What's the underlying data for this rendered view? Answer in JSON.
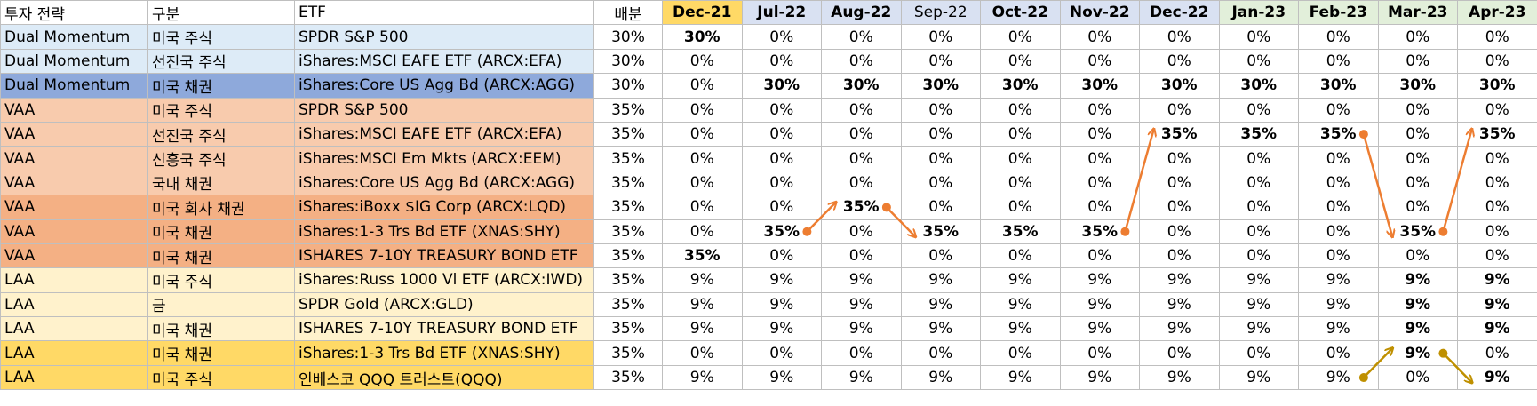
{
  "headers": {
    "strategy": "투자 전략",
    "category": "구분",
    "etf": "ETF",
    "weight": "배분",
    "months": [
      "Dec-21",
      "Jul-22",
      "Aug-22",
      "Sep-22",
      "Oct-22",
      "Nov-22",
      "Dec-22",
      "Jan-23",
      "Feb-23",
      "Mar-23",
      "Apr-23"
    ]
  },
  "month_header_colors": [
    "#ffd966",
    "#d9e1f2",
    "#d9e1f2",
    "#d9e1f2",
    "#d9e1f2",
    "#d9e1f2",
    "#d9e1f2",
    "#e2efda",
    "#e2efda",
    "#e2efda",
    "#e2efda"
  ],
  "rows": [
    {
      "strategy": "Dual Momentum",
      "category": "미국 주식",
      "etf": "SPDR S&P 500",
      "weight": "30%",
      "values": [
        "30%",
        "0%",
        "0%",
        "0%",
        "0%",
        "0%",
        "0%",
        "0%",
        "0%",
        "0%",
        "0%"
      ],
      "bold": [
        0
      ],
      "color": "#ddebf7"
    },
    {
      "strategy": "Dual Momentum",
      "category": "선진국 주식",
      "etf": "iShares:MSCI EAFE ETF (ARCX:EFA)",
      "weight": "30%",
      "values": [
        "0%",
        "0%",
        "0%",
        "0%",
        "0%",
        "0%",
        "0%",
        "0%",
        "0%",
        "0%",
        "0%"
      ],
      "bold": [],
      "color": "#ddebf7"
    },
    {
      "strategy": "Dual Momentum",
      "category": "미국 채권",
      "etf": "iShares:Core US Agg Bd (ARCX:AGG)",
      "weight": "30%",
      "values": [
        "0%",
        "30%",
        "30%",
        "30%",
        "30%",
        "30%",
        "30%",
        "30%",
        "30%",
        "30%",
        "30%"
      ],
      "bold": [
        1,
        2,
        3,
        4,
        5,
        6,
        7,
        8,
        9,
        10
      ],
      "color": "#8ea9db"
    },
    {
      "strategy": "VAA",
      "category": "미국 주식",
      "etf": "SPDR S&P 500",
      "weight": "35%",
      "values": [
        "0%",
        "0%",
        "0%",
        "0%",
        "0%",
        "0%",
        "0%",
        "0%",
        "0%",
        "0%",
        "0%"
      ],
      "bold": [],
      "color": "#f8cbad"
    },
    {
      "strategy": "VAA",
      "category": "선진국 주식",
      "etf": "iShares:MSCI EAFE ETF (ARCX:EFA)",
      "weight": "35%",
      "values": [
        "0%",
        "0%",
        "0%",
        "0%",
        "0%",
        "0%",
        "35%",
        "35%",
        "35%",
        "0%",
        "35%"
      ],
      "bold": [
        6,
        7,
        8,
        10
      ],
      "color": "#f8cbad"
    },
    {
      "strategy": "VAA",
      "category": "신흥국 주식",
      "etf": "iShares:MSCI Em Mkts (ARCX:EEM)",
      "weight": "35%",
      "values": [
        "0%",
        "0%",
        "0%",
        "0%",
        "0%",
        "0%",
        "0%",
        "0%",
        "0%",
        "0%",
        "0%"
      ],
      "bold": [],
      "color": "#f8cbad"
    },
    {
      "strategy": "VAA",
      "category": "국내 채권",
      "etf": "iShares:Core US Agg Bd (ARCX:AGG)",
      "weight": "35%",
      "values": [
        "0%",
        "0%",
        "0%",
        "0%",
        "0%",
        "0%",
        "0%",
        "0%",
        "0%",
        "0%",
        "0%"
      ],
      "bold": [],
      "color": "#f8cbad"
    },
    {
      "strategy": "VAA",
      "category": "미국 회사 채권",
      "etf": "iShares:iBoxx $IG Corp (ARCX:LQD)",
      "weight": "35%",
      "values": [
        "0%",
        "0%",
        "35%",
        "0%",
        "0%",
        "0%",
        "0%",
        "0%",
        "0%",
        "0%",
        "0%"
      ],
      "bold": [
        2
      ],
      "color": "#f4b084"
    },
    {
      "strategy": "VAA",
      "category": "미국 채권",
      "etf": "iShares:1-3 Trs Bd ETF (XNAS:SHY)",
      "weight": "35%",
      "values": [
        "0%",
        "35%",
        "0%",
        "35%",
        "35%",
        "35%",
        "0%",
        "0%",
        "0%",
        "35%",
        "0%"
      ],
      "bold": [
        1,
        3,
        4,
        5,
        9
      ],
      "color": "#f4b084"
    },
    {
      "strategy": "VAA",
      "category": "미국 채권",
      "etf": "ISHARES 7-10Y TREASURY BOND ETF",
      "weight": "35%",
      "values": [
        "35%",
        "0%",
        "0%",
        "0%",
        "0%",
        "0%",
        "0%",
        "0%",
        "0%",
        "0%",
        "0%"
      ],
      "bold": [
        0
      ],
      "color": "#f4b084"
    },
    {
      "strategy": "LAA",
      "category": "미국 주식",
      "etf": "iShares:Russ 1000 Vl ETF (ARCX:IWD)",
      "weight": "35%",
      "values": [
        "9%",
        "9%",
        "9%",
        "9%",
        "9%",
        "9%",
        "9%",
        "9%",
        "9%",
        "9%",
        "9%"
      ],
      "bold": [
        9,
        10
      ],
      "color": "#fff2cc"
    },
    {
      "strategy": "LAA",
      "category": "금",
      "etf": "SPDR Gold (ARCX:GLD)",
      "weight": "35%",
      "values": [
        "9%",
        "9%",
        "9%",
        "9%",
        "9%",
        "9%",
        "9%",
        "9%",
        "9%",
        "9%",
        "9%"
      ],
      "bold": [
        9,
        10
      ],
      "color": "#fff2cc"
    },
    {
      "strategy": "LAA",
      "category": "미국 채권",
      "etf": "ISHARES 7-10Y TREASURY BOND ETF",
      "weight": "35%",
      "values": [
        "9%",
        "9%",
        "9%",
        "9%",
        "9%",
        "9%",
        "9%",
        "9%",
        "9%",
        "9%",
        "9%"
      ],
      "bold": [
        9,
        10
      ],
      "color": "#fff2cc"
    },
    {
      "strategy": "LAA",
      "category": "미국 채권",
      "etf": "iShares:1-3 Trs Bd ETF (XNAS:SHY)",
      "weight": "35%",
      "values": [
        "0%",
        "0%",
        "0%",
        "0%",
        "0%",
        "0%",
        "0%",
        "0%",
        "0%",
        "9%",
        "0%"
      ],
      "bold": [
        9
      ],
      "color": "#ffd966"
    },
    {
      "strategy": "LAA",
      "category": "미국 주식",
      "etf": "인베스코 QQQ 트러스트(QQQ)",
      "weight": "35%",
      "values": [
        "9%",
        "9%",
        "9%",
        "9%",
        "9%",
        "9%",
        "9%",
        "9%",
        "9%",
        "0%",
        "9%"
      ],
      "bold": [
        10
      ],
      "color": "#ffd966"
    }
  ],
  "arrows": [
    {
      "from": {
        "row": 8,
        "month": 1
      },
      "to": {
        "row": 7,
        "month": 2
      },
      "color": "#ed7d31"
    },
    {
      "from": {
        "row": 7,
        "month": 2
      },
      "to": {
        "row": 8,
        "month": 3
      },
      "color": "#ed7d31"
    },
    {
      "from": {
        "row": 8,
        "month": 5
      },
      "to": {
        "row": 4,
        "month": 6
      },
      "color": "#ed7d31"
    },
    {
      "from": {
        "row": 4,
        "month": 8
      },
      "to": {
        "row": 8,
        "month": 9
      },
      "color": "#ed7d31"
    },
    {
      "from": {
        "row": 8,
        "month": 9
      },
      "to": {
        "row": 4,
        "month": 10
      },
      "color": "#ed7d31"
    },
    {
      "from": {
        "row": 14,
        "month": 8
      },
      "to": {
        "row": 13,
        "month": 9
      },
      "color": "#bf9000"
    },
    {
      "from": {
        "row": 13,
        "month": 9
      },
      "to": {
        "row": 14,
        "month": 10
      },
      "color": "#bf9000"
    }
  ]
}
